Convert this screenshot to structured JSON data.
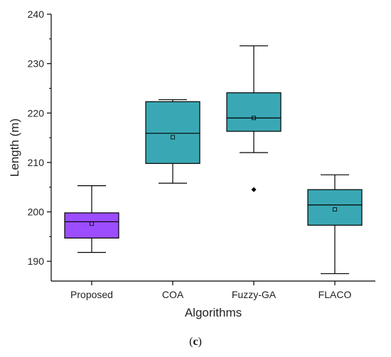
{
  "chart_data": {
    "type": "boxplot",
    "xlabel": "Algorithms",
    "ylabel": "Length (m)",
    "ylim": [
      186,
      240
    ],
    "yticks": [
      190,
      200,
      210,
      220,
      230,
      240
    ],
    "ytick_labels": [
      "190",
      "200",
      "210",
      "220",
      "230",
      "240"
    ],
    "categories": [
      "Proposed",
      "COA",
      "Fuzzy-GA",
      "FLACO"
    ],
    "boxes": [
      {
        "category": "Proposed",
        "whisker_low": 191.8,
        "q1": 194.7,
        "median": 198.0,
        "q3": 199.8,
        "whisker_high": 205.3,
        "mean": 197.6,
        "outliers": [],
        "color": "#9b4dff"
      },
      {
        "category": "COA",
        "whisker_low": 205.8,
        "q1": 209.8,
        "median": 215.9,
        "q3": 222.3,
        "whisker_high": 222.7,
        "mean": 215.1,
        "outliers": [],
        "color": "#3aa8b4"
      },
      {
        "category": "Fuzzy-GA",
        "whisker_low": 212.0,
        "q1": 216.3,
        "median": 219.0,
        "q3": 224.1,
        "whisker_high": 233.6,
        "mean": 219.0,
        "outliers": [
          204.5
        ],
        "color": "#3aa8b4"
      },
      {
        "category": "FLACO",
        "whisker_low": 187.5,
        "q1": 197.3,
        "median": 201.4,
        "q3": 204.5,
        "whisker_high": 207.5,
        "mean": 200.5,
        "outliers": [],
        "color": "#3aa8b4"
      }
    ],
    "grid": false,
    "legend": "none"
  },
  "caption": {
    "open": "(",
    "letter": "c",
    "close": ")"
  }
}
